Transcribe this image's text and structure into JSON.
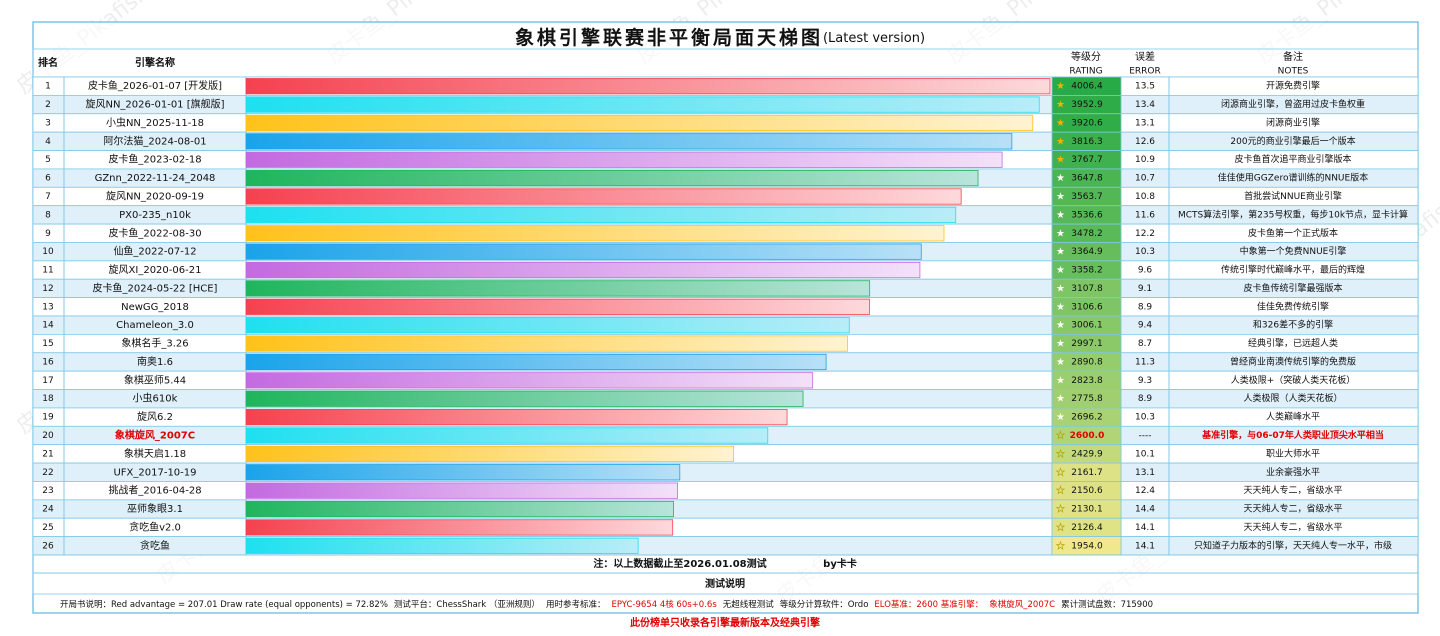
{
  "title": "象棋引擎联赛非平衡局面天梯图",
  "title_suffix": "(Latest version)",
  "watermark": "皮卡鱼_Pikafish",
  "headers": {
    "rank": "排名",
    "name": "引擎名称",
    "rating": "等级分",
    "rating_en": "RATING",
    "error": "误差",
    "error_en": "ERROR",
    "notes": "备注",
    "notes_en": "NOTES"
  },
  "colors": [
    "#f5414f",
    "#1ee0f0",
    "#ffc21a",
    "#1aa3ea",
    "#c36ae0",
    "#1fb55c"
  ],
  "rows": [
    {
      "rank": 1,
      "name": "皮卡鱼_2026-01-07 [开发版]",
      "rating": 4006.4,
      "error": 13.5,
      "note": "开源免费引擎"
    },
    {
      "rank": 2,
      "name": "旋风NN_2026-01-01 [旗舰版]",
      "rating": 3952.9,
      "error": 13.4,
      "note": "闭源商业引擎，曾盗用过皮卡鱼权重"
    },
    {
      "rank": 3,
      "name": "小虫NN_2025-11-18",
      "rating": 3920.6,
      "error": 13.1,
      "note": "闭源商业引擎"
    },
    {
      "rank": 4,
      "name": "阿尔法猫_2024-08-01",
      "rating": 3816.3,
      "error": 12.6,
      "note": "200元的商业引擎最后一个版本"
    },
    {
      "rank": 5,
      "name": "皮卡鱼_2023-02-18",
      "rating": 3767.7,
      "error": 10.9,
      "note": "皮卡鱼首次追平商业引擎版本"
    },
    {
      "rank": 6,
      "name": "GZnn_2022-11-24_2048",
      "rating": 3647.8,
      "error": 10.7,
      "note": "佳佳使用GGZero谱训练的NNUE版本"
    },
    {
      "rank": 7,
      "name": "旋风NN_2020-09-19",
      "rating": 3563.7,
      "error": 10.8,
      "note": "首批尝试NNUE商业引擎"
    },
    {
      "rank": 8,
      "name": "PX0-235_n10k",
      "rating": 3536.6,
      "error": 11.6,
      "note": "MCTS算法引擎，第235号权重，每步10k节点，显卡计算"
    },
    {
      "rank": 9,
      "name": "皮卡鱼_2022-08-30",
      "rating": 3478.2,
      "error": 12.2,
      "note": "皮卡鱼第一个正式版本"
    },
    {
      "rank": 10,
      "name": "仙鱼_2022-07-12",
      "rating": 3364.9,
      "error": 10.3,
      "note": "中象第一个免费NNUE引擎"
    },
    {
      "rank": 11,
      "name": "旋风XI_2020-06-21",
      "rating": 3358.2,
      "error": 9.6,
      "note": "传统引擎时代巅峰水平，最后的辉煌"
    },
    {
      "rank": 12,
      "name": "皮卡鱼_2024-05-22 [HCE]",
      "rating": 3107.8,
      "error": 9.1,
      "note": "皮卡鱼传统引擎最强版本"
    },
    {
      "rank": 13,
      "name": "NewGG_2018",
      "rating": 3106.6,
      "error": 8.9,
      "note": "佳佳免费传统引擎"
    },
    {
      "rank": 14,
      "name": "Chameleon_3.0",
      "rating": 3006.1,
      "error": 9.4,
      "note": "和326差不多的引擎"
    },
    {
      "rank": 15,
      "name": "象棋名手_3.26",
      "rating": 2997.1,
      "error": 8.7,
      "note": "经典引擎，已远超人类"
    },
    {
      "rank": 16,
      "name": "南奥1.6",
      "rating": 2890.8,
      "error": 11.3,
      "note": "曾经商业南澳传统引擎的免费版"
    },
    {
      "rank": 17,
      "name": "象棋巫师5.44",
      "rating": 2823.8,
      "error": 9.3,
      "note": "人类极限+（突破人类天花板）"
    },
    {
      "rank": 18,
      "name": "小虫610k",
      "rating": 2775.8,
      "error": 8.9,
      "note": "人类极限（人类天花板）"
    },
    {
      "rank": 19,
      "name": "旋风6.2",
      "rating": 2696.2,
      "error": 10.3,
      "note": "人类巅峰水平"
    },
    {
      "rank": 20,
      "name": "象棋旋风_2007C",
      "rating": 2600,
      "rating_label": "2600.0",
      "error": "----",
      "note": "基准引擎，与06-07年人类职业顶尖水平相当",
      "highlight": true
    },
    {
      "rank": 21,
      "name": "象棋天启1.18",
      "rating": 2429.9,
      "error": 10.1,
      "note": "职业大师水平"
    },
    {
      "rank": 22,
      "name": "UFX_2017-10-19",
      "rating": 2161.7,
      "error": 13.1,
      "note": "业余豪强水平"
    },
    {
      "rank": 23,
      "name": "挑战者_2016-04-28",
      "rating": 2150.6,
      "error": 12.4,
      "note": "天天纯人专二，省级水平"
    },
    {
      "rank": 24,
      "name": "巫师象眼3.1",
      "rating": 2130.1,
      "error": 14.4,
      "note": "天天纯人专二，省级水平"
    },
    {
      "rank": 25,
      "name": "贪吃鱼v2.0",
      "rating": 2126.4,
      "error": 14.1,
      "note": "天天纯人专二，省级水平"
    },
    {
      "rank": 26,
      "name": "贪吃鱼",
      "rating": 1954,
      "rating_label": "1954.0",
      "error": 14.1,
      "note": "只知道子力版本的引擎，天天纯人专一水平，市级"
    }
  ],
  "footnote": "注：以上数据截止至2026.01.08测试",
  "byline": "by卡卡",
  "section": "测试说明",
  "details": [
    {
      "text": "开局书说明：Red advantage  = 207.01  Draw rate (equal opponents) = 72.82%",
      "color": "#111111"
    },
    {
      "text": "测试平台：ChessShark （亚洲规则）",
      "color": "#111111"
    },
    {
      "text": "用时参考标准：",
      "color": "#111111"
    },
    {
      "text": "EPYC-9654 4核 60s+0.6s",
      "color": "#e00000"
    },
    {
      "text": "无超线程测试",
      "color": "#111111"
    },
    {
      "text": "等级分计算软件：Ordo",
      "color": "#111111"
    },
    {
      "text": "ELO基准：2600 基准引擎：",
      "color": "#e00000"
    },
    {
      "text": "象棋旋风_2007C",
      "color": "#e00000"
    },
    {
      "text": "累计测试盘数：715900",
      "color": "#111111"
    }
  ],
  "bottom_note": "此份榜单只收录各引擎最新版本及经典引擎"
}
